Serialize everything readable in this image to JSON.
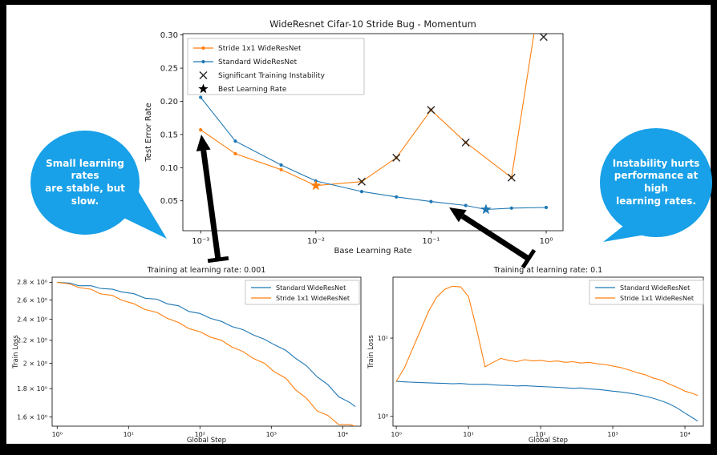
{
  "colors": {
    "orange": "#ff7f0e",
    "blue": "#1f77b4",
    "annotation_blue": "#18a0e8",
    "marker_black": "#262626",
    "arrow_black": "#000000"
  },
  "callouts": {
    "left": {
      "lines": [
        "Small learning rates",
        "are stable, but slow."
      ]
    },
    "right": {
      "lines": [
        "Instability hurts",
        "performance at high",
        "learning rates."
      ]
    }
  },
  "chart_data": [
    {
      "type": "line",
      "title": "WideResnet Cifar-10 Stride Bug - Momentum",
      "xlabel": "Base Learning Rate",
      "ylabel": "Test Error Rate",
      "xscale": "log",
      "yscale": "linear",
      "xlim": [
        0.0007,
        1.4
      ],
      "ylim": [
        0.005,
        0.302
      ],
      "grid": false,
      "xticks": {
        "values": [
          0.001,
          0.01,
          0.1,
          1
        ],
        "labels": [
          "10⁻³",
          "10⁻²",
          "10⁻¹",
          "10⁰"
        ]
      },
      "yticks": {
        "values": [
          0.05,
          0.1,
          0.15,
          0.2,
          0.25,
          0.3
        ],
        "labels": [
          "0.05",
          "0.10",
          "0.15",
          "0.20",
          "0.25",
          "0.30"
        ]
      },
      "legend": {
        "position": "upper-left",
        "entries": [
          {
            "label": "Stride 1x1 WideResNet",
            "kind": "line-dot",
            "color": "#ff7f0e"
          },
          {
            "label": "Standard WideResNet",
            "kind": "line-dot",
            "color": "#1f77b4"
          },
          {
            "label": "Significant Training Instability",
            "kind": "x",
            "color": "#262626"
          },
          {
            "label": "Best Learning Rate",
            "kind": "star",
            "color": "#000000"
          }
        ]
      },
      "series": [
        {
          "name": "Stride 1x1 WideResNet",
          "color": "#ff7f0e",
          "markers": "dot",
          "x": [
            0.001,
            0.002,
            0.005,
            0.01,
            0.025,
            0.05,
            0.1,
            0.2,
            0.5,
            1.0
          ],
          "y": [
            0.157,
            0.121,
            0.097,
            0.073,
            0.079,
            0.115,
            0.187,
            0.138,
            0.085,
            0.42
          ]
        },
        {
          "name": "Standard WideResNet",
          "color": "#1f77b4",
          "markers": "dot",
          "x": [
            0.001,
            0.002,
            0.005,
            0.01,
            0.025,
            0.05,
            0.1,
            0.2,
            0.3,
            0.5,
            1.0
          ],
          "y": [
            0.206,
            0.14,
            0.104,
            0.08,
            0.064,
            0.056,
            0.049,
            0.043,
            0.037,
            0.039,
            0.04
          ]
        }
      ],
      "instability_markers": [
        {
          "x": 0.025,
          "y": 0.079
        },
        {
          "x": 0.05,
          "y": 0.115
        },
        {
          "x": 0.1,
          "y": 0.187
        },
        {
          "x": 0.2,
          "y": 0.138
        },
        {
          "x": 0.5,
          "y": 0.085
        },
        {
          "x": 0.95,
          "y": 0.297
        }
      ],
      "best_lr_markers": [
        {
          "series": "Stride 1x1 WideResNet",
          "x": 0.01,
          "y": 0.073,
          "color": "#ff7f0e"
        },
        {
          "series": "Standard WideResNet",
          "x": 0.3,
          "y": 0.037,
          "color": "#1f77b4"
        }
      ]
    },
    {
      "type": "line",
      "title": "Training at learning rate: 0.001",
      "xlabel": "Global Step",
      "ylabel": "Train Loss",
      "xscale": "log",
      "yscale": "log",
      "xlim": [
        0.85,
        18000
      ],
      "ylim": [
        1.54,
        2.86
      ],
      "grid": false,
      "xticks": {
        "values": [
          1,
          10,
          100,
          1000,
          10000
        ],
        "labels": [
          "10⁰",
          "10¹",
          "10²",
          "10³",
          "10⁴"
        ]
      },
      "yticks": {
        "values": [
          1.6,
          1.8,
          2.0,
          2.2,
          2.4,
          2.6,
          2.8
        ],
        "labels": [
          "1.6 × 10⁰",
          "1.8 × 10⁰",
          "2 × 10⁰",
          "2.2 × 10⁰",
          "2.4 × 10⁰",
          "2.6 × 10⁰",
          "2.8 × 10⁰"
        ]
      },
      "legend": {
        "position": "upper-right",
        "entries": [
          {
            "label": "Standard WideResNet",
            "kind": "line",
            "color": "#1f77b4"
          },
          {
            "label": "Stride 1x1 WideResNet",
            "kind": "line",
            "color": "#ff7f0e"
          }
        ]
      },
      "series": [
        {
          "name": "Standard WideResNet",
          "color": "#1f77b4",
          "markers": "none",
          "x": [
            1,
            1.5,
            2,
            3,
            4,
            6,
            8,
            12,
            17,
            25,
            35,
            50,
            70,
            100,
            140,
            200,
            280,
            400,
            560,
            800,
            1100,
            1600,
            2200,
            3100,
            4400,
            6200,
            8800,
            12500,
            15000
          ],
          "y": [
            2.8,
            2.79,
            2.76,
            2.76,
            2.73,
            2.72,
            2.69,
            2.67,
            2.62,
            2.61,
            2.56,
            2.54,
            2.48,
            2.46,
            2.41,
            2.38,
            2.33,
            2.3,
            2.25,
            2.21,
            2.16,
            2.11,
            2.04,
            1.98,
            1.89,
            1.83,
            1.74,
            1.7,
            1.67
          ]
        },
        {
          "name": "Stride 1x1 WideResNet",
          "color": "#ff7f0e",
          "markers": "none",
          "x": [
            1,
            1.5,
            2,
            3,
            4,
            6,
            8,
            12,
            17,
            25,
            35,
            50,
            70,
            100,
            140,
            200,
            280,
            400,
            560,
            800,
            1100,
            1600,
            2200,
            3100,
            4400,
            6200,
            8800,
            12500,
            15000
          ],
          "y": [
            2.8,
            2.78,
            2.74,
            2.72,
            2.67,
            2.65,
            2.6,
            2.56,
            2.5,
            2.47,
            2.41,
            2.37,
            2.31,
            2.28,
            2.23,
            2.2,
            2.14,
            2.1,
            2.04,
            2.0,
            1.93,
            1.88,
            1.79,
            1.73,
            1.64,
            1.61,
            1.55,
            1.55,
            1.54
          ]
        }
      ]
    },
    {
      "type": "line",
      "title": "Training at learning rate: 0.1",
      "xlabel": "Global Step",
      "ylabel": "Train Loss",
      "xscale": "log",
      "yscale": "log",
      "xlim": [
        0.9,
        18000
      ],
      "ylim": [
        0.75,
        60
      ],
      "grid": false,
      "xticks": {
        "values": [
          1,
          10,
          100,
          1000,
          10000
        ],
        "labels": [
          "10⁰",
          "10¹",
          "10²",
          "10³",
          "10⁴"
        ]
      },
      "yticks": {
        "values": [
          1,
          10
        ],
        "labels": [
          "10⁰",
          "10¹"
        ]
      },
      "legend": {
        "position": "upper-right",
        "entries": [
          {
            "label": "Standard WideResNet",
            "kind": "line",
            "color": "#1f77b4"
          },
          {
            "label": "Stride 1x1 WideResNet",
            "kind": "line",
            "color": "#ff7f0e"
          }
        ]
      },
      "series": [
        {
          "name": "Standard WideResNet",
          "color": "#1f77b4",
          "markers": "none",
          "x": [
            1,
            1.3,
            1.7,
            2.2,
            2.8,
            3.6,
            4.7,
            6,
            7.8,
            10,
            13,
            17,
            22,
            28,
            36,
            47,
            60,
            78,
            100,
            130,
            170,
            220,
            280,
            360,
            470,
            600,
            780,
            1000,
            1300,
            1700,
            2200,
            2800,
            3600,
            4700,
            6000,
            7800,
            10000,
            13000,
            15000
          ],
          "y": [
            2.8,
            2.76,
            2.73,
            2.7,
            2.68,
            2.66,
            2.64,
            2.61,
            2.63,
            2.58,
            2.56,
            2.58,
            2.53,
            2.5,
            2.48,
            2.45,
            2.47,
            2.43,
            2.4,
            2.38,
            2.35,
            2.32,
            2.28,
            2.31,
            2.25,
            2.21,
            2.16,
            2.1,
            2.05,
            1.98,
            1.9,
            1.81,
            1.71,
            1.58,
            1.45,
            1.28,
            1.1,
            0.95,
            0.87
          ]
        },
        {
          "name": "Stride 1x1 WideResNet",
          "color": "#ff7f0e",
          "markers": "none",
          "x": [
            1,
            1.3,
            1.7,
            2.2,
            2.8,
            3.6,
            4.7,
            6,
            7.8,
            10,
            13,
            17,
            22,
            28,
            36,
            47,
            60,
            78,
            100,
            130,
            170,
            220,
            280,
            360,
            470,
            600,
            780,
            1000,
            1300,
            1700,
            2200,
            2800,
            3600,
            4700,
            6000,
            7800,
            10000,
            13000,
            15000
          ],
          "y": [
            2.8,
            4.2,
            7.5,
            13,
            22,
            33,
            42,
            46,
            45,
            34,
            13,
            4.3,
            4.9,
            5.5,
            5.2,
            5.0,
            5.3,
            5.1,
            5.2,
            5.0,
            5.1,
            4.9,
            5.0,
            4.8,
            4.9,
            4.7,
            4.6,
            4.4,
            4.2,
            3.9,
            3.6,
            3.4,
            3.1,
            2.9,
            2.6,
            2.35,
            2.1,
            1.95,
            1.85
          ]
        }
      ]
    }
  ]
}
